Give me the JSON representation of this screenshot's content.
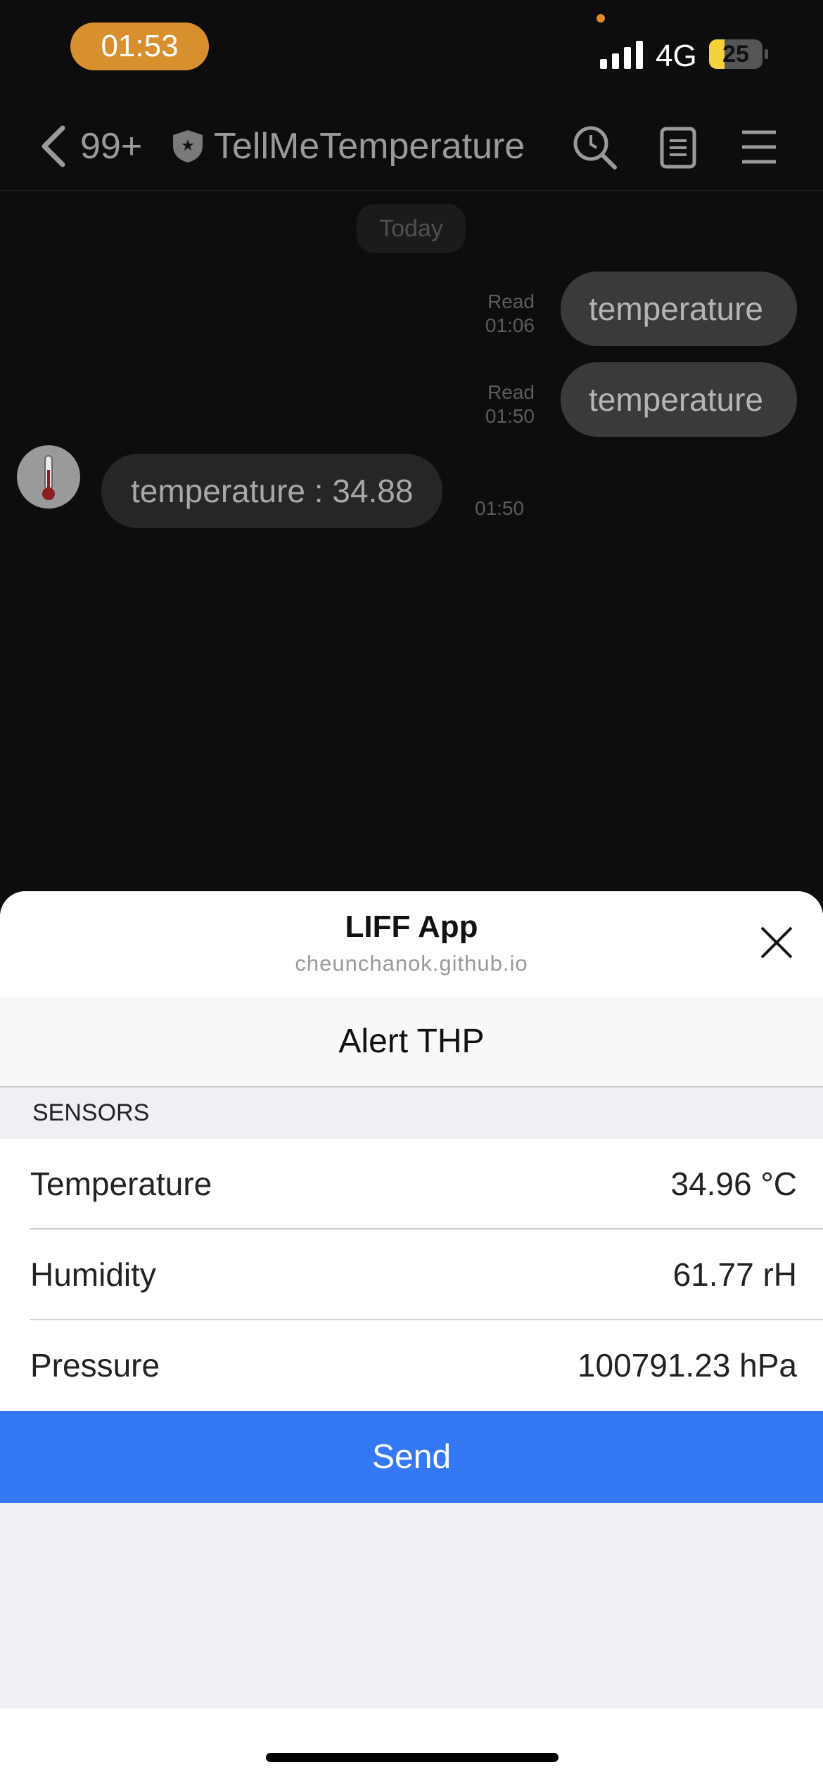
{
  "status": {
    "time": "01:53",
    "network": "4G",
    "battery": "25"
  },
  "nav": {
    "back_count": "99+",
    "title": "TellMeTemperature"
  },
  "chat": {
    "date": "Today",
    "messages": [
      {
        "text": "temperature",
        "status": "Read",
        "time": "01:06"
      },
      {
        "text": "temperature",
        "status": "Read",
        "time": "01:50"
      },
      {
        "text": "temperature : 34.88",
        "time": "01:50"
      }
    ]
  },
  "sheet": {
    "title": "LIFF App",
    "domain": "cheunchanok.github.io",
    "header": "Alert THP",
    "section": "SENSORS",
    "rows": [
      {
        "label": "Temperature",
        "value": "34.96 °C"
      },
      {
        "label": "Humidity",
        "value": "61.77 rH"
      },
      {
        "label": "Pressure",
        "value": "100791.23 hPa"
      }
    ],
    "button": "Send"
  }
}
